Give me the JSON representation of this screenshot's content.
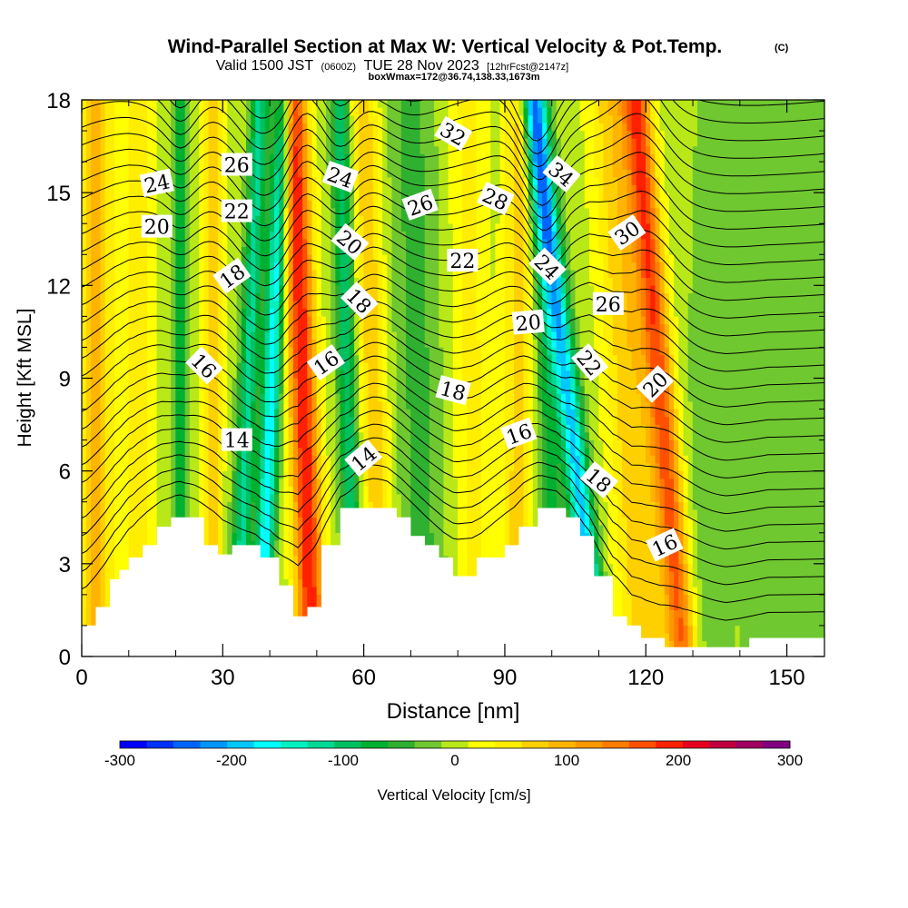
{
  "header": {
    "title": "Wind-Parallel Section at Max W: Vertical Velocity & Pot.Temp.",
    "copyright": "(C)",
    "valid_a": "Valid 1500 JST",
    "valid_b": "(0600Z)",
    "valid_c": "TUE 28 Nov 2023",
    "valid_d": "[12hrFcst@2147z]",
    "box_line": "boxWmax=172@36.74,138.33,1673m"
  },
  "chart_data": {
    "type": "heatmap",
    "xlabel": "Distance [nm]",
    "ylabel": "Height [Kft MSL]",
    "xlim": [
      0,
      158
    ],
    "ylim": [
      0,
      18
    ],
    "x_ticks": [
      "0",
      "30",
      "60",
      "90",
      "120",
      "150"
    ],
    "y_ticks": [
      "0",
      "3",
      "6",
      "9",
      "12",
      "15",
      "18"
    ],
    "colorbar": {
      "label": "Vertical Velocity [cm/s]",
      "min": -300,
      "max": 300,
      "step": 25,
      "tick_labels": [
        "-300",
        "-200",
        "-100",
        "0",
        "100",
        "200",
        "300"
      ],
      "colors": [
        "#0000ff",
        "#0032ff",
        "#0064ff",
        "#0096ff",
        "#00c8ff",
        "#00ffff",
        "#00f0c0",
        "#00d896",
        "#00c060",
        "#00b030",
        "#30b030",
        "#70c830",
        "#b8e818",
        "#ffff00",
        "#ffee00",
        "#ffd000",
        "#ffb400",
        "#ff9800",
        "#ff7c00",
        "#ff5000",
        "#ff2000",
        "#e80020",
        "#c00040",
        "#a00060",
        "#800080"
      ]
    },
    "terrain_kft": [
      [
        0,
        1.0
      ],
      [
        3,
        1.0
      ],
      [
        3,
        1.6
      ],
      [
        6,
        1.6
      ],
      [
        6,
        2.5
      ],
      [
        8,
        2.5
      ],
      [
        8,
        2.8
      ],
      [
        10,
        2.8
      ],
      [
        10,
        3.2
      ],
      [
        13,
        3.2
      ],
      [
        13,
        3.6
      ],
      [
        16,
        3.6
      ],
      [
        16,
        4.2
      ],
      [
        19,
        4.2
      ],
      [
        19,
        4.5
      ],
      [
        26,
        4.5
      ],
      [
        26,
        3.6
      ],
      [
        29,
        3.6
      ],
      [
        29,
        3.3
      ],
      [
        32,
        3.3
      ],
      [
        32,
        3.6
      ],
      [
        38,
        3.6
      ],
      [
        38,
        3.2
      ],
      [
        42,
        3.2
      ],
      [
        42,
        2.3
      ],
      [
        45,
        2.3
      ],
      [
        45,
        1.3
      ],
      [
        48,
        1.3
      ],
      [
        48,
        1.6
      ],
      [
        51,
        1.6
      ],
      [
        51,
        3.6
      ],
      [
        55,
        3.6
      ],
      [
        55,
        4.8
      ],
      [
        67,
        4.8
      ],
      [
        67,
        4.5
      ],
      [
        70,
        4.5
      ],
      [
        70,
        3.9
      ],
      [
        73,
        3.9
      ],
      [
        73,
        3.6
      ],
      [
        76,
        3.6
      ],
      [
        76,
        3.2
      ],
      [
        79,
        3.2
      ],
      [
        79,
        2.6
      ],
      [
        84,
        2.6
      ],
      [
        84,
        3.2
      ],
      [
        90,
        3.2
      ],
      [
        90,
        3.6
      ],
      [
        93,
        3.6
      ],
      [
        93,
        4.2
      ],
      [
        97,
        4.2
      ],
      [
        97,
        4.8
      ],
      [
        103,
        4.8
      ],
      [
        103,
        4.5
      ],
      [
        106,
        4.5
      ],
      [
        106,
        3.9
      ],
      [
        109,
        3.9
      ],
      [
        109,
        2.6
      ],
      [
        113,
        2.6
      ],
      [
        113,
        1.3
      ],
      [
        116,
        1.3
      ],
      [
        116,
        1.0
      ],
      [
        119,
        1.0
      ],
      [
        119,
        0.6
      ],
      [
        124,
        0.6
      ],
      [
        124,
        0.3
      ],
      [
        142,
        0.3
      ],
      [
        142,
        0.6
      ],
      [
        158,
        0.6
      ]
    ],
    "w_features": [
      {
        "x0": 3,
        "x1": 3,
        "w": 90,
        "s": 4
      },
      {
        "x0": 12,
        "x1": 12,
        "w": 55,
        "s": 3
      },
      {
        "x0": 21,
        "x1": 21,
        "w": -75,
        "s": 1.6
      },
      {
        "x0": 28,
        "x1": 28,
        "w": 70,
        "s": 2
      },
      {
        "x0": 33,
        "x1": 38,
        "w": -120,
        "s": 2
      },
      {
        "x0": 38,
        "x1": 43,
        "w": -180,
        "s": 2
      },
      {
        "x0": 49,
        "x1": 45,
        "w": 210,
        "s": 3
      },
      {
        "x0": 58,
        "x1": 55,
        "w": -110,
        "s": 2
      },
      {
        "x0": 64,
        "x1": 60,
        "w": 80,
        "s": 3
      },
      {
        "x0": 73,
        "x1": 70,
        "w": -45,
        "s": 5
      },
      {
        "x0": 84,
        "x1": 82,
        "w": 45,
        "s": 4
      },
      {
        "x0": 93,
        "x1": 93,
        "w": 80,
        "s": 3
      },
      {
        "x0": 101,
        "x1": 97,
        "w": -70,
        "s": 2.5
      },
      {
        "x0": 110,
        "x1": 96,
        "w": -200,
        "s": 2.5
      },
      {
        "x0": 120,
        "x1": 113,
        "w": 85,
        "s": 5
      },
      {
        "x0": 128,
        "x1": 118,
        "w": 170,
        "s": 3
      },
      {
        "x0": 132,
        "x1": 136,
        "w": -25,
        "s": 6
      },
      {
        "x0": 150,
        "x1": 150,
        "w": -35,
        "s": 8
      }
    ],
    "theta_labels": [
      {
        "text": "24",
        "x": 16,
        "h": 15.3,
        "rot": -12
      },
      {
        "text": "20",
        "x": 16,
        "h": 13.9,
        "rot": 0
      },
      {
        "text": "26",
        "x": 33,
        "h": 15.9,
        "rot": 0
      },
      {
        "text": "22",
        "x": 33,
        "h": 14.4,
        "rot": 0
      },
      {
        "text": "18",
        "x": 32,
        "h": 12.3,
        "rot": -35
      },
      {
        "text": "16",
        "x": 26,
        "h": 9.4,
        "rot": 45
      },
      {
        "text": "14",
        "x": 33,
        "h": 7.0,
        "rot": 0
      },
      {
        "text": "24",
        "x": 55,
        "h": 15.5,
        "rot": 20
      },
      {
        "text": "20",
        "x": 57,
        "h": 13.4,
        "rot": 40
      },
      {
        "text": "18",
        "x": 59,
        "h": 11.5,
        "rot": 45
      },
      {
        "text": "16",
        "x": 52,
        "h": 9.5,
        "rot": -35
      },
      {
        "text": "14",
        "x": 60,
        "h": 6.4,
        "rot": -40
      },
      {
        "text": "32",
        "x": 79,
        "h": 16.9,
        "rot": 30
      },
      {
        "text": "26",
        "x": 72,
        "h": 14.6,
        "rot": -20
      },
      {
        "text": "28",
        "x": 88,
        "h": 14.8,
        "rot": 25
      },
      {
        "text": "22",
        "x": 81,
        "h": 12.8,
        "rot": 0
      },
      {
        "text": "20",
        "x": 95,
        "h": 10.8,
        "rot": -5
      },
      {
        "text": "18",
        "x": 79,
        "h": 8.6,
        "rot": 15
      },
      {
        "text": "16",
        "x": 93,
        "h": 7.2,
        "rot": -20
      },
      {
        "text": "34",
        "x": 102,
        "h": 15.6,
        "rot": 40
      },
      {
        "text": "24",
        "x": 99,
        "h": 12.6,
        "rot": 45
      },
      {
        "text": "30",
        "x": 116,
        "h": 13.7,
        "rot": -35
      },
      {
        "text": "26",
        "x": 112,
        "h": 11.4,
        "rot": 0
      },
      {
        "text": "22",
        "x": 108,
        "h": 9.5,
        "rot": 50
      },
      {
        "text": "20",
        "x": 122,
        "h": 8.8,
        "rot": -45
      },
      {
        "text": "18",
        "x": 110,
        "h": 5.7,
        "rot": 40
      },
      {
        "text": "16",
        "x": 124,
        "h": 3.6,
        "rot": -25
      }
    ]
  }
}
